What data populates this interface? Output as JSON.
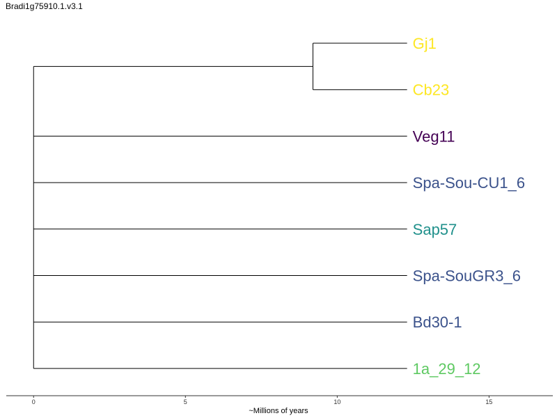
{
  "title": "Bradi1g75910.1.v3.1",
  "tree": {
    "branch_color": "#000000",
    "tips": [
      {
        "label": "Gj1",
        "color": "#fde725",
        "branch_length": 12.3
      },
      {
        "label": "Cb23",
        "color": "#fde725",
        "branch_length": 12.3
      },
      {
        "label": "Veg11",
        "color": "#440154",
        "branch_length": 12.3
      },
      {
        "label": "Spa-Sou-CU1_6",
        "color": "#3b528b",
        "branch_length": 12.3
      },
      {
        "label": "Sap57",
        "color": "#21918c",
        "branch_length": 12.3
      },
      {
        "label": "Spa-SouGR3_6",
        "color": "#3b528b",
        "branch_length": 12.3
      },
      {
        "label": "Bd30-1",
        "color": "#3b528b",
        "branch_length": 12.3
      },
      {
        "label": "1a_29_12",
        "color": "#5ec962",
        "branch_length": 12.3
      }
    ],
    "clades": [
      {
        "members": [
          "Gj1",
          "Cb23"
        ],
        "node_age": 9.2
      }
    ]
  },
  "axis": {
    "label": "~Millions of years",
    "ticks": [
      "0",
      "5",
      "10",
      "15"
    ],
    "range": [
      -0.9,
      17.1
    ]
  }
}
